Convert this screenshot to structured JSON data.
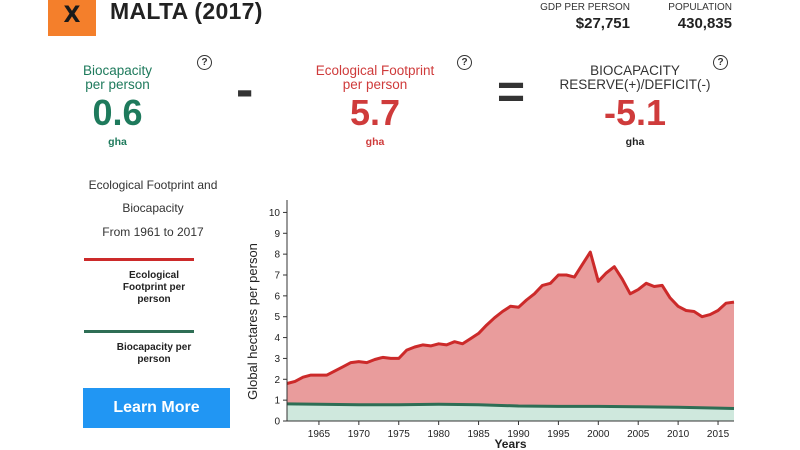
{
  "header": {
    "close_label": "X",
    "country_title": "MALTA (2017)",
    "gdp_label": "GDP PER PERSON",
    "gdp_value": "$27,751",
    "population_label": "POPULATION",
    "population_value": "430,835"
  },
  "metrics": {
    "biocapacity": {
      "label_line1": "Biocapacity",
      "label_line2": "per person",
      "value": "0.6",
      "unit": "gha"
    },
    "footprint": {
      "label_line1": "Ecological Footprint",
      "label_line2": "per person",
      "value": "5.7",
      "unit": "gha"
    },
    "reserve": {
      "label_line1": "BIOCAPACITY",
      "label_line2": "RESERVE(+)/DEFICIT(-)",
      "value": "-5.1",
      "unit": "gha"
    },
    "minus_sign": "-",
    "equals_sign": "=",
    "help_symbol": "?"
  },
  "sidebar": {
    "line1": "Ecological Footprint and",
    "line2": "Biocapacity",
    "line3": "From 1961 to 2017",
    "legend_footprint_line1": "Ecological",
    "legend_footprint_line2": "Footprint per",
    "legend_footprint_line3": "person",
    "legend_bio_line1": "Biocapacity per",
    "legend_bio_line2": "person",
    "learn_more": "Learn More"
  },
  "colors": {
    "footprint_line": "#cc2a2a",
    "footprint_fill": "#e99c9c",
    "biocapacity_line": "#2e6e55",
    "biocapacity_fill": "#cfe8dd",
    "button": "#2196f3",
    "close": "#f47f2b"
  },
  "chart_data": {
    "type": "area",
    "title": "",
    "xlabel": "Years",
    "ylabel": "Global hectares per person",
    "xlim": [
      1961,
      2017
    ],
    "ylim": [
      0,
      10.5
    ],
    "yticks": [
      0,
      1,
      2,
      3,
      4,
      5,
      6,
      7,
      8,
      9,
      10
    ],
    "xticks": [
      1965,
      1970,
      1975,
      1980,
      1985,
      1990,
      1995,
      2000,
      2005,
      2010,
      2015
    ],
    "series": [
      {
        "name": "Ecological Footprint per person",
        "x": [
          1961,
          1962,
          1963,
          1964,
          1965,
          1966,
          1967,
          1968,
          1969,
          1970,
          1971,
          1972,
          1973,
          1974,
          1975,
          1976,
          1977,
          1978,
          1979,
          1980,
          1981,
          1982,
          1983,
          1984,
          1985,
          1986,
          1987,
          1988,
          1989,
          1990,
          1991,
          1992,
          1993,
          1994,
          1995,
          1996,
          1997,
          1998,
          1999,
          2000,
          2001,
          2002,
          2003,
          2004,
          2005,
          2006,
          2007,
          2008,
          2009,
          2010,
          2011,
          2012,
          2013,
          2014,
          2015,
          2016,
          2017
        ],
        "values": [
          1.8,
          1.9,
          2.1,
          2.2,
          2.2,
          2.2,
          2.4,
          2.6,
          2.8,
          2.85,
          2.8,
          2.95,
          3.05,
          3.0,
          3.0,
          3.4,
          3.55,
          3.65,
          3.6,
          3.7,
          3.65,
          3.8,
          3.7,
          3.95,
          4.2,
          4.6,
          4.95,
          5.25,
          5.5,
          5.45,
          5.8,
          6.1,
          6.5,
          6.6,
          7.0,
          7.0,
          6.9,
          7.5,
          8.1,
          6.7,
          7.1,
          7.4,
          6.8,
          6.1,
          6.3,
          6.6,
          6.45,
          6.5,
          5.9,
          5.5,
          5.3,
          5.25,
          5.0,
          5.1,
          5.3,
          5.65,
          5.7
        ]
      },
      {
        "name": "Biocapacity per person",
        "x": [
          1961,
          1965,
          1970,
          1975,
          1980,
          1985,
          1990,
          1995,
          2000,
          2005,
          2010,
          2015,
          2017
        ],
        "values": [
          0.82,
          0.8,
          0.78,
          0.78,
          0.8,
          0.78,
          0.72,
          0.7,
          0.7,
          0.68,
          0.66,
          0.62,
          0.6
        ]
      }
    ]
  }
}
